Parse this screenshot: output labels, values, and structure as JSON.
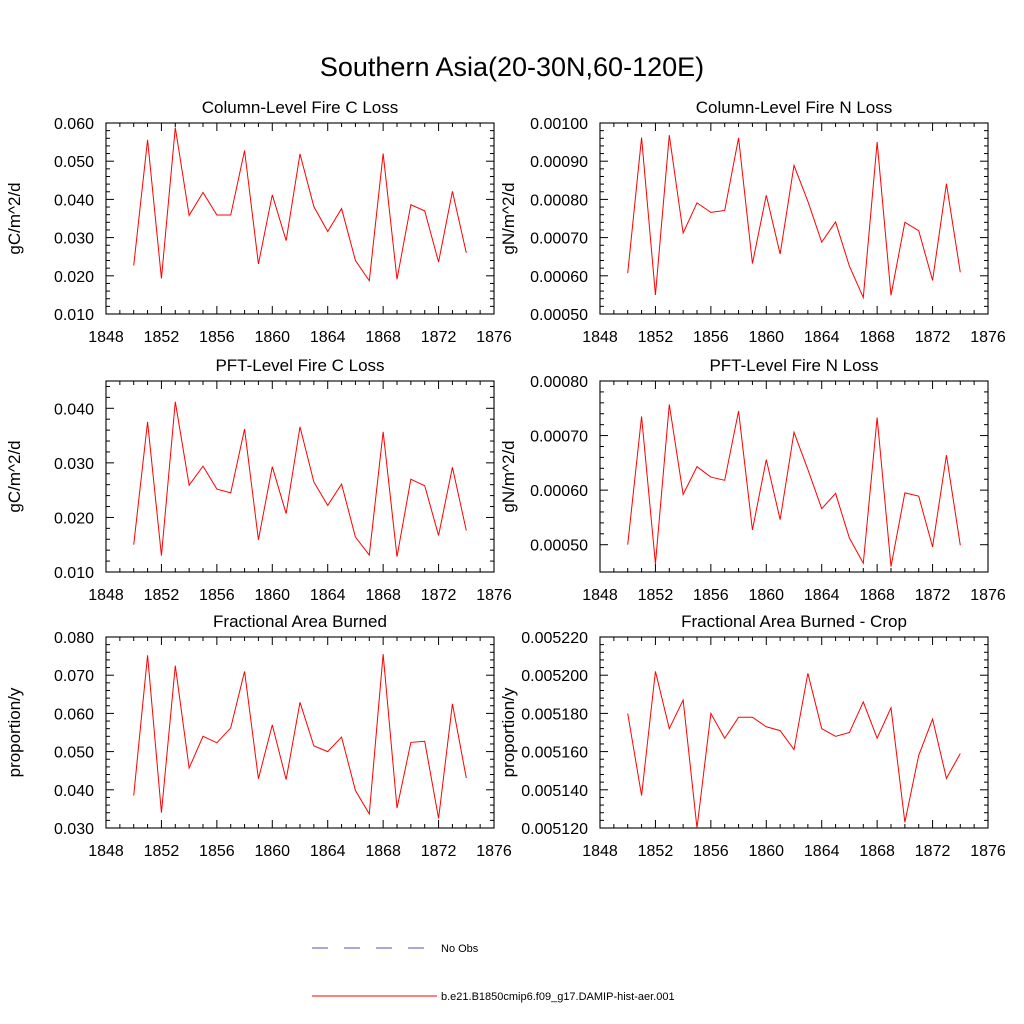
{
  "figure": {
    "title": "Southern Asia(20-30N,60-120E)"
  },
  "legend": {
    "entries": [
      {
        "label": "No Obs",
        "color": "#4b55a8",
        "style": "dashed"
      },
      {
        "label": "b.e21.B1850cmip6.f09_g17.DAMIP-hist-aer.001",
        "color": "#ff0000",
        "style": "solid"
      }
    ]
  },
  "chart_data": [
    {
      "type": "line",
      "title": "Column-Level Fire C Loss",
      "ylabel": "gC/m^2/d",
      "xlim": [
        1848,
        1876
      ],
      "ylim": [
        0.01,
        0.06
      ],
      "xticks": [
        1848,
        1852,
        1856,
        1860,
        1864,
        1868,
        1872,
        1876
      ],
      "xtick_labels": [
        "1848",
        "1852",
        "1856",
        "1860",
        "1864",
        "1868",
        "1872",
        "1876"
      ],
      "yticks": [
        0.01,
        0.02,
        0.03,
        0.04,
        0.05,
        0.06
      ],
      "ytick_labels": [
        "0.010",
        "0.020",
        "0.030",
        "0.040",
        "0.050",
        "0.060"
      ],
      "x": [
        1850,
        1851,
        1852,
        1853,
        1854,
        1855,
        1856,
        1857,
        1858,
        1859,
        1860,
        1861,
        1862,
        1863,
        1864,
        1865,
        1866,
        1867,
        1868,
        1869,
        1870,
        1871,
        1872,
        1873,
        1874
      ],
      "series": [
        {
          "color": "#ff0000",
          "values": [
            0.0227,
            0.0556,
            0.0193,
            0.0588,
            0.0358,
            0.0418,
            0.0359,
            0.0359,
            0.0528,
            0.0231,
            0.0412,
            0.0292,
            0.0519,
            0.0381,
            0.0316,
            0.0376,
            0.024,
            0.0187,
            0.052,
            0.0191,
            0.0386,
            0.037,
            0.0236,
            0.0421,
            0.026
          ]
        }
      ]
    },
    {
      "type": "line",
      "title": "Column-Level Fire N Loss",
      "ylabel": "gN/m^2/d",
      "xlim": [
        1848,
        1876
      ],
      "ylim": [
        0.0005,
        0.001
      ],
      "xticks": [
        1848,
        1852,
        1856,
        1860,
        1864,
        1868,
        1872,
        1876
      ],
      "xtick_labels": [
        "1848",
        "1852",
        "1856",
        "1860",
        "1864",
        "1868",
        "1872",
        "1876"
      ],
      "yticks": [
        0.0005,
        0.0006,
        0.0007,
        0.0008,
        0.0009,
        0.001
      ],
      "ytick_labels": [
        "0.00050",
        "0.00060",
        "0.00070",
        "0.00080",
        "0.00090",
        "0.00100"
      ],
      "x": [
        1850,
        1851,
        1852,
        1853,
        1854,
        1855,
        1856,
        1857,
        1858,
        1859,
        1860,
        1861,
        1862,
        1863,
        1864,
        1865,
        1866,
        1867,
        1868,
        1869,
        1870,
        1871,
        1872,
        1873,
        1874
      ],
      "series": [
        {
          "color": "#ff0000",
          "values": [
            0.000607,
            0.000962,
            0.00055,
            0.000968,
            0.000712,
            0.000791,
            0.000766,
            0.000771,
            0.000961,
            0.000632,
            0.000811,
            0.000657,
            0.000889,
            0.000795,
            0.000688,
            0.000741,
            0.000625,
            0.000543,
            0.00095,
            0.000549,
            0.00074,
            0.000718,
            0.000588,
            0.000841,
            0.000609
          ]
        }
      ]
    },
    {
      "type": "line",
      "title": "PFT-Level Fire C Loss",
      "ylabel": "gC/m^2/d",
      "xlim": [
        1848,
        1876
      ],
      "ylim": [
        0.01,
        0.045
      ],
      "xticks": [
        1848,
        1852,
        1856,
        1860,
        1864,
        1868,
        1872,
        1876
      ],
      "xtick_labels": [
        "1848",
        "1852",
        "1856",
        "1860",
        "1864",
        "1868",
        "1872",
        "1876"
      ],
      "yticks": [
        0.01,
        0.02,
        0.03,
        0.04
      ],
      "ytick_labels": [
        "0.010",
        "0.020",
        "0.030",
        "0.040"
      ],
      "x": [
        1850,
        1851,
        1852,
        1853,
        1854,
        1855,
        1856,
        1857,
        1858,
        1859,
        1860,
        1861,
        1862,
        1863,
        1864,
        1865,
        1866,
        1867,
        1868,
        1869,
        1870,
        1871,
        1872,
        1873,
        1874
      ],
      "series": [
        {
          "color": "#ff0000",
          "values": [
            0.015,
            0.0375,
            0.013,
            0.0412,
            0.0259,
            0.0294,
            0.0252,
            0.0245,
            0.0362,
            0.0159,
            0.0293,
            0.0207,
            0.0366,
            0.0265,
            0.0222,
            0.0261,
            0.0164,
            0.0131,
            0.0357,
            0.0128,
            0.027,
            0.0258,
            0.0167,
            0.0292,
            0.0176
          ]
        }
      ]
    },
    {
      "type": "line",
      "title": "PFT-Level Fire N Loss",
      "ylabel": "gN/m^2/d",
      "xlim": [
        1848,
        1876
      ],
      "ylim": [
        0.00045,
        0.0008
      ],
      "xticks": [
        1848,
        1852,
        1856,
        1860,
        1864,
        1868,
        1872,
        1876
      ],
      "xtick_labels": [
        "1848",
        "1852",
        "1856",
        "1860",
        "1864",
        "1868",
        "1872",
        "1876"
      ],
      "yticks": [
        0.0005,
        0.0006,
        0.0007,
        0.0008
      ],
      "ytick_labels": [
        "0.00050",
        "0.00060",
        "0.00070",
        "0.00080"
      ],
      "x": [
        1850,
        1851,
        1852,
        1853,
        1854,
        1855,
        1856,
        1857,
        1858,
        1859,
        1860,
        1861,
        1862,
        1863,
        1864,
        1865,
        1866,
        1867,
        1868,
        1869,
        1870,
        1871,
        1872,
        1873,
        1874
      ],
      "series": [
        {
          "color": "#ff0000",
          "values": [
            0.0005,
            0.000735,
            0.000465,
            0.000757,
            0.000592,
            0.000643,
            0.000624,
            0.000618,
            0.000745,
            0.000527,
            0.000656,
            0.000546,
            0.000706,
            0.000638,
            0.000566,
            0.000594,
            0.000512,
            0.000466,
            0.000733,
            0.00046,
            0.000595,
            0.000589,
            0.000496,
            0.000664,
            0.000499
          ]
        }
      ]
    },
    {
      "type": "line",
      "title": "Fractional Area Burned",
      "ylabel": "proportion/y",
      "xlim": [
        1848,
        1876
      ],
      "ylim": [
        0.03,
        0.08
      ],
      "xticks": [
        1848,
        1852,
        1856,
        1860,
        1864,
        1868,
        1872,
        1876
      ],
      "xtick_labels": [
        "1848",
        "1852",
        "1856",
        "1860",
        "1864",
        "1868",
        "1872",
        "1876"
      ],
      "yticks": [
        0.03,
        0.04,
        0.05,
        0.06,
        0.07,
        0.08
      ],
      "ytick_labels": [
        "0.030",
        "0.040",
        "0.050",
        "0.060",
        "0.070",
        "0.080"
      ],
      "x": [
        1850,
        1851,
        1852,
        1853,
        1854,
        1855,
        1856,
        1857,
        1858,
        1859,
        1860,
        1861,
        1862,
        1863,
        1864,
        1865,
        1866,
        1867,
        1868,
        1869,
        1870,
        1871,
        1872,
        1873,
        1874
      ],
      "series": [
        {
          "color": "#ff0000",
          "values": [
            0.0385,
            0.0752,
            0.034,
            0.0725,
            0.0457,
            0.054,
            0.0523,
            0.0562,
            0.071,
            0.0429,
            0.057,
            0.0427,
            0.0629,
            0.0515,
            0.05,
            0.0538,
            0.0398,
            0.0337,
            0.0755,
            0.0352,
            0.0524,
            0.0527,
            0.0325,
            0.0625,
            0.0431
          ]
        }
      ]
    },
    {
      "type": "line",
      "title": "Fractional Area Burned - Crop",
      "ylabel": "proportion/y",
      "xlim": [
        1848,
        1876
      ],
      "ylim": [
        0.00512,
        0.00522
      ],
      "xticks": [
        1848,
        1852,
        1856,
        1860,
        1864,
        1868,
        1872,
        1876
      ],
      "xtick_labels": [
        "1848",
        "1852",
        "1856",
        "1860",
        "1864",
        "1868",
        "1872",
        "1876"
      ],
      "yticks": [
        0.00512,
        0.00514,
        0.00516,
        0.00518,
        0.0052,
        0.00522
      ],
      "ytick_labels": [
        "0.005120",
        "0.005140",
        "0.005160",
        "0.005180",
        "0.005200",
        "0.005220"
      ],
      "x": [
        1850,
        1851,
        1852,
        1853,
        1854,
        1855,
        1856,
        1857,
        1858,
        1859,
        1860,
        1861,
        1862,
        1863,
        1864,
        1865,
        1866,
        1867,
        1868,
        1869,
        1870,
        1871,
        1872,
        1873,
        1874
      ],
      "series": [
        {
          "color": "#ff0000",
          "values": [
            0.00518,
            0.005137,
            0.005202,
            0.005172,
            0.005187,
            0.00512,
            0.00518,
            0.005167,
            0.005178,
            0.005178,
            0.005173,
            0.005171,
            0.005161,
            0.005201,
            0.005172,
            0.005168,
            0.00517,
            0.005186,
            0.005167,
            0.005183,
            0.005123,
            0.005158,
            0.005177,
            0.005146,
            0.005159
          ]
        }
      ]
    }
  ]
}
